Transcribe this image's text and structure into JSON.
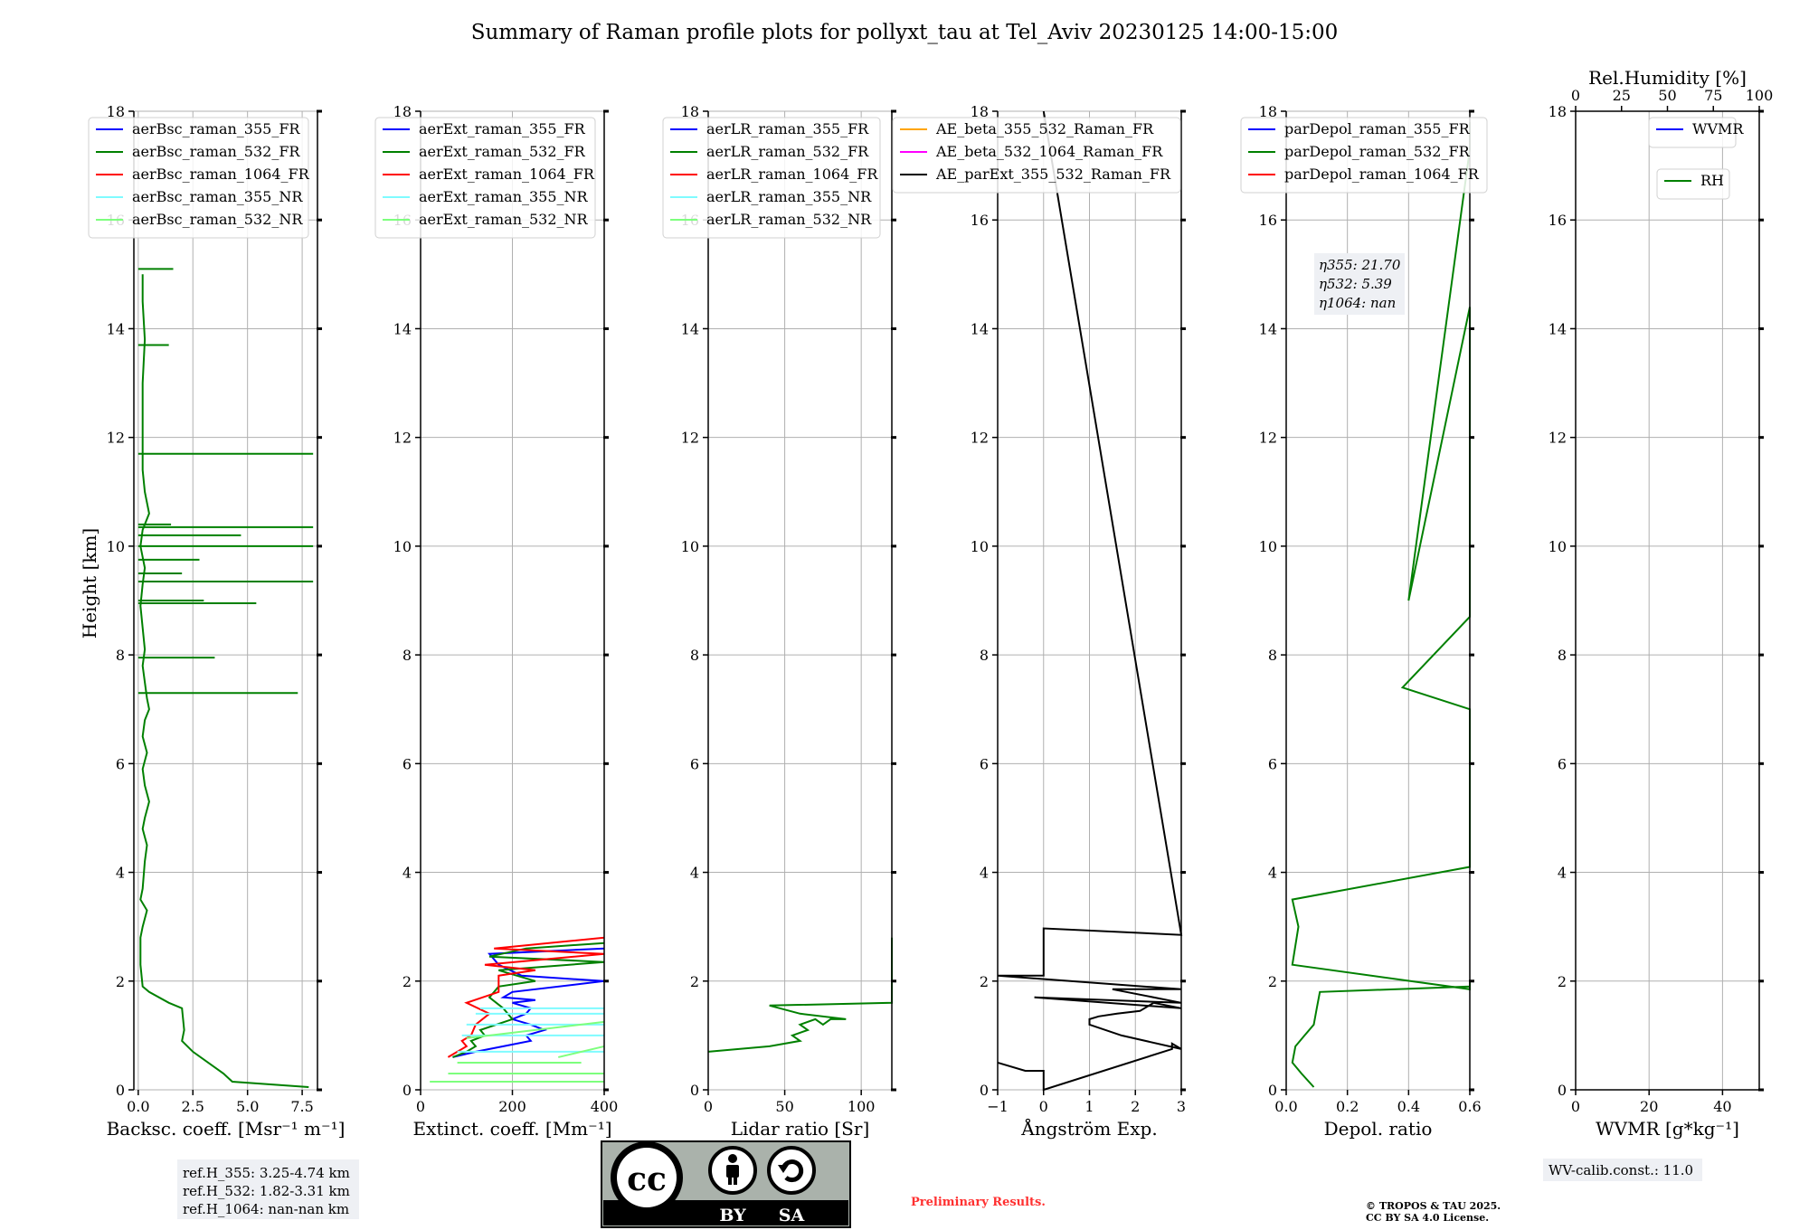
{
  "title": "Summary of Raman profile plots for pollyxt_tau at Tel_Aviv 20230125 14:00-15:00",
  "ylabel": "Height [km]",
  "height_ticks": [
    "0",
    "2",
    "4",
    "6",
    "8",
    "10",
    "12",
    "14",
    "16",
    "18"
  ],
  "colors": {
    "blue": "#0000ff",
    "green": "#008000",
    "red": "#ff0000",
    "cyan": "#7ffbff",
    "lightgreen": "#7dff7d",
    "orange": "#ffa500",
    "magenta": "#ff00ff",
    "black": "#000000",
    "grid": "#b0b0b0",
    "legend_box_bg": "#eef0f4"
  },
  "ref_info": [
    "ref.H_355: 3.25-4.74 km",
    "ref.H_532: 1.82-3.31 km",
    "ref.H_1064: nan-nan km"
  ],
  "eta_info": [
    "η355: 21.70",
    "η532: 5.39",
    "η1064: nan"
  ],
  "wv_calib": "WV-calib.const.: 11.0",
  "preliminary": "Preliminary Results.",
  "copyright": [
    "© TROPOS & TAU 2025.",
    "CC BY SA 4.0 License."
  ],
  "license_badge": {
    "symbols": [
      "cc-icon",
      "by-person-icon",
      "sa-circular-arrow-icon"
    ],
    "labels": [
      "BY",
      "SA"
    ]
  },
  "panels": [
    {
      "xlabel": "Backsc. coeff. [Msr⁻¹ m⁻¹]",
      "xlim": [
        -0.2,
        8.2
      ],
      "xticks": [
        "0.0",
        "2.5",
        "5.0",
        "7.5"
      ],
      "xtick_values": [
        0,
        2.5,
        5,
        7.5
      ],
      "legend": [
        {
          "name": "aerBsc_raman_355_FR",
          "color": "blue"
        },
        {
          "name": "aerBsc_raman_532_FR",
          "color": "green"
        },
        {
          "name": "aerBsc_raman_1064_FR",
          "color": "red"
        },
        {
          "name": "aerBsc_raman_355_NR",
          "color": "cyan"
        },
        {
          "name": "aerBsc_raman_532_NR",
          "color": "lightgreen"
        }
      ]
    },
    {
      "xlabel": "Extinct. coeff. [Mm⁻¹]",
      "xlim": [
        0,
        400
      ],
      "xticks": [
        "0",
        "200",
        "400"
      ],
      "xtick_values": [
        0,
        200,
        400
      ],
      "legend": [
        {
          "name": "aerExt_raman_355_FR",
          "color": "blue"
        },
        {
          "name": "aerExt_raman_532_FR",
          "color": "green"
        },
        {
          "name": "aerExt_raman_1064_FR",
          "color": "red"
        },
        {
          "name": "aerExt_raman_355_NR",
          "color": "cyan"
        },
        {
          "name": "aerExt_raman_532_NR",
          "color": "lightgreen"
        }
      ]
    },
    {
      "xlabel": "Lidar ratio [Sr]",
      "xlim": [
        0,
        120
      ],
      "xticks": [
        "0",
        "50",
        "100"
      ],
      "xtick_values": [
        0,
        50,
        100
      ],
      "legend": [
        {
          "name": "aerLR_raman_355_FR",
          "color": "blue"
        },
        {
          "name": "aerLR_raman_532_FR",
          "color": "green"
        },
        {
          "name": "aerLR_raman_1064_FR",
          "color": "red"
        },
        {
          "name": "aerLR_raman_355_NR",
          "color": "cyan"
        },
        {
          "name": "aerLR_raman_532_NR",
          "color": "lightgreen"
        }
      ]
    },
    {
      "xlabel": "Ångström Exp.",
      "xlim": [
        -1,
        3
      ],
      "xticks": [
        "−1",
        "0",
        "1",
        "2",
        "3"
      ],
      "xtick_values": [
        -1,
        0,
        1,
        2,
        3
      ],
      "legend": [
        {
          "name": "AE_beta_355_532_Raman_FR",
          "color": "orange"
        },
        {
          "name": "AE_beta_532_1064_Raman_FR",
          "color": "magenta"
        },
        {
          "name": "AE_parExt_355_532_Raman_FR",
          "color": "black"
        }
      ]
    },
    {
      "xlabel": "Depol. ratio",
      "xlim": [
        0,
        0.6
      ],
      "xticks": [
        "0.0",
        "0.2",
        "0.4",
        "0.6"
      ],
      "xtick_values": [
        0,
        0.2,
        0.4,
        0.6
      ],
      "legend": [
        {
          "name": "parDepol_raman_355_FR",
          "color": "blue"
        },
        {
          "name": "parDepol_raman_532_FR",
          "color": "green"
        },
        {
          "name": "parDepol_raman_1064_FR",
          "color": "red"
        }
      ]
    },
    {
      "xlabel": "WVMR [g*kg⁻¹]",
      "xlim": [
        0,
        50
      ],
      "xticks": [
        "0",
        "20",
        "40"
      ],
      "xtick_values": [
        0,
        20,
        40
      ],
      "top_xlabel": "Rel.Humidity [%]",
      "top_xticks": [
        "0",
        "25",
        "50",
        "75",
        "100"
      ],
      "top_xtick_values": [
        0,
        25,
        50,
        75,
        100
      ],
      "legend": [
        {
          "name": "WVMR",
          "color": "blue"
        }
      ],
      "legend2": [
        {
          "name": "RH",
          "color": "green"
        }
      ]
    }
  ],
  "chart_data": [
    {
      "type": "line",
      "title": "Summary of Raman profile plots for pollyxt_tau at Tel_Aviv 20230125 14:00-15:00",
      "xlabel": "Backsc. coeff. [Msr⁻¹ m⁻¹]",
      "ylabel": "Height [km]",
      "xlim": [
        -0.2,
        8.2
      ],
      "ylim": [
        0,
        18
      ],
      "grid": true,
      "legend_placement": "top",
      "series": [
        {
          "name": "aerBsc_raman_532_FR",
          "x": [
            7.8,
            4.3,
            3.9,
            2.5,
            2.0,
            2.1,
            2.0,
            1.4,
            0.5,
            0.2,
            0.1,
            0.1,
            0.2,
            0.4,
            0.1,
            0.2,
            0.3,
            0.4,
            0.2,
            0.3,
            0.5,
            0.3,
            0.2,
            0.4,
            0.2,
            0.3,
            0.5,
            0.4,
            0.3,
            0.2,
            0.3,
            0.2,
            0.1,
            0.2,
            0.3,
            0.1,
            0.2,
            0.5,
            0.3,
            0.2,
            0.2,
            0.2,
            0.3,
            0.2,
            0.2
          ],
          "y": [
            0.05,
            0.15,
            0.3,
            0.7,
            0.9,
            1.1,
            1.5,
            1.6,
            1.8,
            1.9,
            2.3,
            2.8,
            3.0,
            3.3,
            3.5,
            3.7,
            4.2,
            4.5,
            4.8,
            5.0,
            5.3,
            5.6,
            5.9,
            6.2,
            6.5,
            6.8,
            7.0,
            7.2,
            7.5,
            7.8,
            8.1,
            8.5,
            8.9,
            9.3,
            9.6,
            10.0,
            10.3,
            10.6,
            11.0,
            11.4,
            12.0,
            13.0,
            13.8,
            14.5,
            15.0
          ]
        },
        {
          "name": "aerBsc_raman_532_FR spikes",
          "x": [
            7.3,
            3.5,
            5.4,
            3.0,
            8.0,
            2.8,
            2.0,
            4.7,
            8.0,
            8.0,
            1.5,
            8.0,
            1.4,
            1.6
          ],
          "y": [
            7.3,
            7.95,
            8.95,
            9.0,
            9.35,
            9.75,
            9.5,
            10.2,
            10.0,
            10.35,
            10.4,
            11.7,
            13.7,
            15.1
          ]
        }
      ]
    },
    {
      "type": "line",
      "xlabel": "Extinct. coeff. [Mm⁻¹]",
      "ylabel": "Height [km]",
      "xlim": [
        0,
        400
      ],
      "ylim": [
        0,
        18
      ],
      "grid": true,
      "series": [
        {
          "name": "aerExt_raman_355_FR",
          "x": [
            70,
            120,
            180,
            240,
            230,
            270,
            240,
            200,
            230,
            240,
            200,
            250,
            180,
            200,
            400,
            220,
            170,
            150,
            400
          ],
          "y": [
            0.6,
            0.7,
            0.8,
            0.9,
            1.0,
            1.1,
            1.2,
            1.3,
            1.4,
            1.5,
            1.6,
            1.65,
            1.7,
            1.8,
            2.0,
            2.1,
            2.3,
            2.5,
            2.6
          ]
        },
        {
          "name": "aerExt_raman_532_FR",
          "x": [
            70,
            100,
            120,
            110,
            140,
            130,
            200,
            180,
            150,
            170,
            250,
            170,
            400,
            150,
            230,
            400
          ],
          "y": [
            0.6,
            0.7,
            0.8,
            0.9,
            1.0,
            1.1,
            1.3,
            1.5,
            1.7,
            1.9,
            2.0,
            2.2,
            2.35,
            2.45,
            2.6,
            2.7
          ]
        },
        {
          "name": "aerExt_raman_1064_FR",
          "x": [
            60,
            80,
            100,
            90,
            110,
            120,
            150,
            100,
            170,
            170,
            250,
            140,
            400,
            160,
            400
          ],
          "y": [
            0.6,
            0.7,
            0.8,
            0.9,
            1.0,
            1.2,
            1.4,
            1.6,
            1.8,
            2.1,
            2.2,
            2.3,
            2.5,
            2.6,
            2.8
          ]
        },
        {
          "name": "aerExt_raman_355_NR",
          "x": [
            80,
            400,
            90,
            400,
            100,
            400,
            120,
            400,
            130,
            400
          ],
          "y": [
            0.7,
            0.7,
            1.0,
            1.0,
            1.2,
            1.2,
            1.4,
            1.4,
            1.5,
            1.5
          ]
        },
        {
          "name": "aerExt_raman_532_NR",
          "x": [
            20,
            400,
            60,
            400,
            80,
            350,
            300,
            400,
            100,
            400
          ],
          "y": [
            0.15,
            0.15,
            0.3,
            0.3,
            0.5,
            0.5,
            0.6,
            0.8,
            0.95,
            1.25
          ]
        }
      ]
    },
    {
      "type": "line",
      "xlabel": "Lidar ratio [Sr]",
      "ylabel": "Height [km]",
      "xlim": [
        0,
        120
      ],
      "ylim": [
        0,
        18
      ],
      "grid": true,
      "series": [
        {
          "name": "aerLR_raman_532_FR",
          "x": [
            0,
            40,
            60,
            55,
            65,
            60,
            70,
            75,
            80,
            90,
            60,
            40,
            120,
            120,
            120,
            120,
            120,
            120,
            120,
            120
          ],
          "y": [
            0.7,
            0.8,
            0.9,
            1.0,
            1.1,
            1.2,
            1.3,
            1.2,
            1.3,
            1.3,
            1.4,
            1.55,
            1.6,
            1.9,
            2.0,
            2.2,
            2.35,
            2.5,
            2.65,
            2.8
          ]
        }
      ]
    },
    {
      "type": "line",
      "xlabel": "Ångström Exp.",
      "ylabel": "Height [km]",
      "xlim": [
        -1,
        3
      ],
      "ylim": [
        0,
        18
      ],
      "grid": true,
      "series": [
        {
          "name": "AE_parExt_355_532_Raman_FR",
          "x": [
            -1,
            -0.4,
            0,
            0,
            2.8,
            2.8,
            3,
            1.7,
            1.0,
            1.0,
            1.2,
            1.6,
            2.1,
            2.4,
            3,
            -0.2,
            3,
            1.5,
            3,
            -1,
            0,
            0,
            3,
            0
          ],
          "y": [
            0.5,
            0.35,
            0.35,
            0.0,
            0.75,
            0.85,
            0.75,
            1.0,
            1.2,
            1.3,
            1.35,
            1.4,
            1.45,
            1.6,
            1.5,
            1.7,
            1.6,
            1.85,
            1.85,
            2.1,
            2.1,
            2.97,
            2.85,
            18
          ]
        }
      ]
    },
    {
      "type": "line",
      "xlabel": "Depol. ratio",
      "ylabel": "Height [km]",
      "xlim": [
        0,
        0.6
      ],
      "ylim": [
        0,
        18
      ],
      "grid": true,
      "series": [
        {
          "name": "parDepol_raman_532_FR",
          "x": [
            0.09,
            0.05,
            0.02,
            0.03,
            0.06,
            0.09,
            0.1,
            0.11,
            0.6,
            0.6,
            0.6,
            0.02,
            0.04,
            0.02,
            0.6,
            0.6,
            0.6,
            0.6,
            0.6,
            0.6,
            0.38,
            0.6,
            0.6,
            0.6,
            0.6,
            0.6,
            0.6,
            0.6,
            0.4,
            0.6,
            0.6,
            0.6
          ],
          "y": [
            0.05,
            0.3,
            0.5,
            0.8,
            1.0,
            1.2,
            1.5,
            1.8,
            1.9,
            2.0,
            1.85,
            2.3,
            3.0,
            3.5,
            4.1,
            5.6,
            5.7,
            5.9,
            6.0,
            7.0,
            7.4,
            8.7,
            8.75,
            9.8,
            10.8,
            10.85,
            13.7,
            14.4,
            9.0,
            17.3,
            17.6,
            17.8
          ]
        }
      ]
    },
    {
      "type": "line",
      "xlabel": "WVMR [g*kg⁻¹]",
      "ylabel": "Height [km]",
      "xlim": [
        0,
        50
      ],
      "ylim": [
        0,
        18
      ],
      "grid": true,
      "series": []
    }
  ]
}
